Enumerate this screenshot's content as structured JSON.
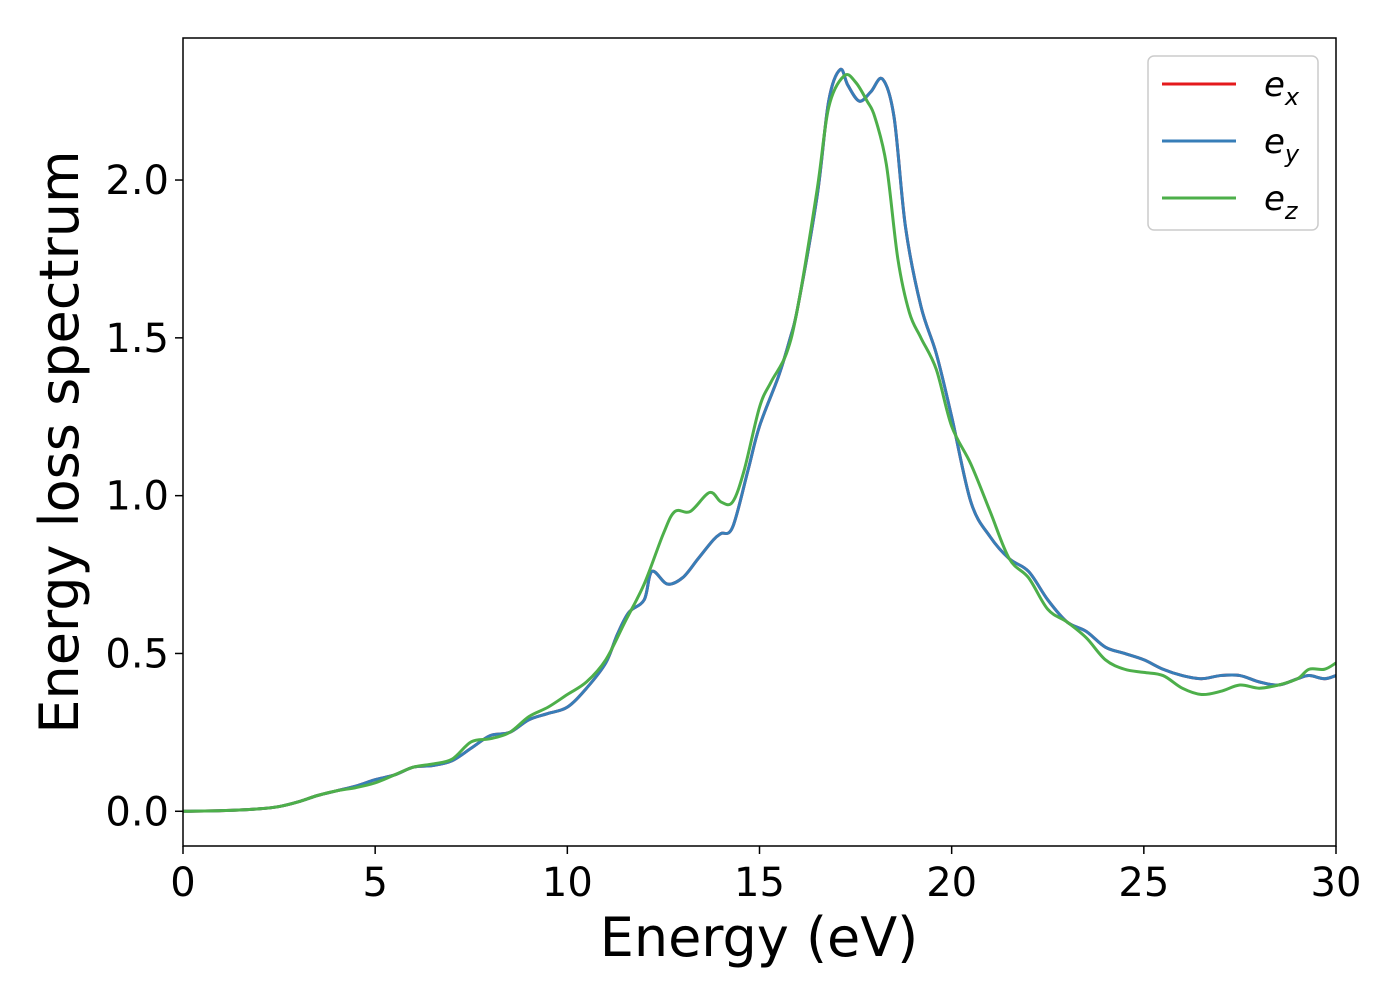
{
  "chart_data": {
    "type": "line",
    "xlabel": "Energy (eV)",
    "ylabel": "Energy loss spectrum",
    "xlim": [
      0,
      30
    ],
    "ylim": [
      -0.11,
      2.45
    ],
    "xticks": [
      0,
      5,
      10,
      15,
      20,
      25,
      30
    ],
    "yticks": [
      0.0,
      0.5,
      1.0,
      1.5,
      2.0
    ],
    "xtick_labels": [
      "0",
      "5",
      "10",
      "15",
      "20",
      "25",
      "30"
    ],
    "ytick_labels": [
      "0.0",
      "0.5",
      "1.0",
      "1.5",
      "2.0"
    ],
    "grid": false,
    "legend_position": "top-right",
    "series": [
      {
        "name": "e_x",
        "label_base": "e",
        "label_sub": "x",
        "color": "#e41a1c",
        "x": [
          0,
          1,
          2,
          2.5,
          3,
          3.5,
          4,
          4.5,
          5,
          5.5,
          6,
          6.5,
          7,
          7.5,
          8,
          8.5,
          9,
          9.5,
          10,
          10.5,
          11,
          11.3,
          11.6,
          12,
          12.2,
          12.6,
          13,
          13.4,
          13.8,
          14,
          14.3,
          14.7,
          15,
          15.5,
          15.8,
          16,
          16.5,
          16.8,
          17.1,
          17.3,
          17.6,
          17.9,
          18.2,
          18.5,
          18.8,
          19.2,
          19.6,
          20,
          20.5,
          21,
          21.5,
          22,
          22.5,
          23,
          23.5,
          24,
          24.5,
          25,
          25.5,
          26,
          26.5,
          27,
          27.5,
          28,
          28.5,
          29,
          29.3,
          29.7,
          30
        ],
        "y": [
          0.0,
          0.002,
          0.008,
          0.015,
          0.03,
          0.05,
          0.065,
          0.08,
          0.1,
          0.115,
          0.14,
          0.145,
          0.16,
          0.2,
          0.24,
          0.25,
          0.29,
          0.31,
          0.33,
          0.39,
          0.47,
          0.56,
          0.63,
          0.67,
          0.76,
          0.72,
          0.74,
          0.8,
          0.86,
          0.88,
          0.9,
          1.08,
          1.22,
          1.38,
          1.5,
          1.6,
          1.95,
          2.25,
          2.35,
          2.3,
          2.25,
          2.28,
          2.32,
          2.2,
          1.85,
          1.6,
          1.45,
          1.25,
          0.98,
          0.87,
          0.8,
          0.76,
          0.67,
          0.6,
          0.57,
          0.52,
          0.5,
          0.48,
          0.45,
          0.43,
          0.42,
          0.43,
          0.43,
          0.41,
          0.4,
          0.42,
          0.43,
          0.42,
          0.43
        ]
      },
      {
        "name": "e_y",
        "label_base": "e",
        "label_sub": "y",
        "color": "#377eb8",
        "x": [
          0,
          1,
          2,
          2.5,
          3,
          3.5,
          4,
          4.5,
          5,
          5.5,
          6,
          6.5,
          7,
          7.5,
          8,
          8.5,
          9,
          9.5,
          10,
          10.5,
          11,
          11.3,
          11.6,
          12,
          12.2,
          12.6,
          13,
          13.4,
          13.8,
          14,
          14.3,
          14.7,
          15,
          15.5,
          15.8,
          16,
          16.5,
          16.8,
          17.1,
          17.3,
          17.6,
          17.9,
          18.2,
          18.5,
          18.8,
          19.2,
          19.6,
          20,
          20.5,
          21,
          21.5,
          22,
          22.5,
          23,
          23.5,
          24,
          24.5,
          25,
          25.5,
          26,
          26.5,
          27,
          27.5,
          28,
          28.5,
          29,
          29.3,
          29.7,
          30
        ],
        "y": [
          0.0,
          0.002,
          0.008,
          0.015,
          0.03,
          0.05,
          0.065,
          0.08,
          0.1,
          0.115,
          0.14,
          0.145,
          0.16,
          0.2,
          0.24,
          0.25,
          0.29,
          0.31,
          0.33,
          0.39,
          0.47,
          0.56,
          0.63,
          0.67,
          0.76,
          0.72,
          0.74,
          0.8,
          0.86,
          0.88,
          0.9,
          1.08,
          1.22,
          1.38,
          1.5,
          1.6,
          1.95,
          2.25,
          2.35,
          2.3,
          2.25,
          2.28,
          2.32,
          2.2,
          1.85,
          1.6,
          1.45,
          1.25,
          0.98,
          0.87,
          0.8,
          0.76,
          0.67,
          0.6,
          0.57,
          0.52,
          0.5,
          0.48,
          0.45,
          0.43,
          0.42,
          0.43,
          0.43,
          0.41,
          0.4,
          0.42,
          0.43,
          0.42,
          0.43
        ]
      },
      {
        "name": "e_z",
        "label_base": "e",
        "label_sub": "z",
        "color": "#4daf4a",
        "x": [
          0,
          1,
          2,
          2.5,
          3,
          3.5,
          4,
          4.5,
          5,
          5.5,
          6,
          6.5,
          7,
          7.5,
          8,
          8.5,
          9,
          9.5,
          10,
          10.5,
          11,
          11.5,
          12,
          12.5,
          12.8,
          13.2,
          13.7,
          14,
          14.3,
          14.6,
          15,
          15.3,
          15.7,
          16,
          16.5,
          16.8,
          17.2,
          17.5,
          17.8,
          18,
          18.3,
          18.6,
          18.9,
          19.2,
          19.6,
          20,
          20.5,
          21,
          21.5,
          22,
          22.5,
          23,
          23.5,
          24,
          24.5,
          25,
          25.5,
          26,
          26.5,
          27,
          27.5,
          28,
          28.5,
          29,
          29.3,
          29.7,
          30
        ],
        "y": [
          0.0,
          0.002,
          0.008,
          0.015,
          0.03,
          0.05,
          0.065,
          0.075,
          0.09,
          0.115,
          0.14,
          0.15,
          0.165,
          0.22,
          0.23,
          0.25,
          0.3,
          0.33,
          0.37,
          0.41,
          0.48,
          0.6,
          0.72,
          0.88,
          0.95,
          0.95,
          1.01,
          0.98,
          0.98,
          1.08,
          1.28,
          1.36,
          1.45,
          1.6,
          1.97,
          2.23,
          2.33,
          2.31,
          2.25,
          2.2,
          2.05,
          1.75,
          1.58,
          1.5,
          1.4,
          1.22,
          1.1,
          0.95,
          0.8,
          0.74,
          0.64,
          0.6,
          0.55,
          0.48,
          0.45,
          0.44,
          0.43,
          0.39,
          0.37,
          0.38,
          0.4,
          0.39,
          0.4,
          0.42,
          0.45,
          0.45,
          0.47
        ]
      }
    ]
  }
}
